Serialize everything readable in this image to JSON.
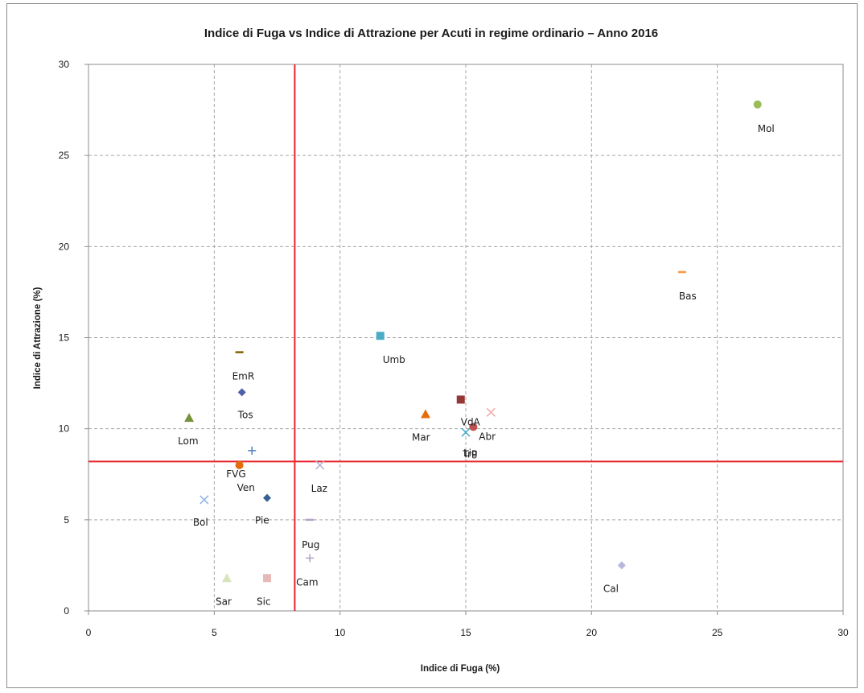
{
  "chart_data": {
    "type": "scatter",
    "title": "Indice di Fuga vs Indice di Attrazione per Acuti in regime ordinario – Anno 2016",
    "xlabel": "Indice di Fuga (%)",
    "ylabel": "Indice di Attrazione (%)",
    "xlim": [
      0,
      30
    ],
    "ylim": [
      0,
      30
    ],
    "xticks": [
      "0",
      "5",
      "10",
      "15",
      "20",
      "25",
      "30"
    ],
    "yticks": [
      "0",
      "5",
      "10",
      "15",
      "20",
      "25",
      "30"
    ],
    "grid": "dashed",
    "legend": "none",
    "reference_lines": {
      "x": 8.2,
      "y": 8.2,
      "color": "#e8242b"
    },
    "points": [
      {
        "label": "Mol",
        "x": 26.6,
        "y": 27.8,
        "marker": "circle",
        "color": "#9bbb59"
      },
      {
        "label": "Bas",
        "x": 23.6,
        "y": 18.6,
        "marker": "dash",
        "color": "#f79646"
      },
      {
        "label": "Umb",
        "x": 11.6,
        "y": 15.1,
        "marker": "square",
        "color": "#4bacc6"
      },
      {
        "label": "EmR",
        "x": 6.0,
        "y": 14.2,
        "marker": "dash",
        "color": "#7f6000"
      },
      {
        "label": "Tos",
        "x": 6.1,
        "y": 12.0,
        "marker": "diamond",
        "color": "#4f5fa8"
      },
      {
        "label": "Lom",
        "x": 4.0,
        "y": 10.6,
        "marker": "triangle",
        "color": "#76923c"
      },
      {
        "label": "VdA",
        "x": 14.8,
        "y": 11.6,
        "marker": "square",
        "color": "#953735"
      },
      {
        "label": "Mar",
        "x": 13.4,
        "y": 10.8,
        "marker": "triangle",
        "color": "#e46c0a"
      },
      {
        "label": "Abr",
        "x": 16.0,
        "y": 10.9,
        "marker": "x",
        "color": "#f2a7a7"
      },
      {
        "label": "Lig",
        "x": 15.0,
        "y": 9.8,
        "marker": "x",
        "color": "#4bacc6"
      },
      {
        "label": "TrP",
        "x": 15.3,
        "y": 10.1,
        "marker": "circle",
        "color": "#c0504d"
      },
      {
        "label": "FVG",
        "x": 6.5,
        "y": 8.8,
        "marker": "plus",
        "color": "#4f81bd"
      },
      {
        "label": "Ven",
        "x": 6.0,
        "y": 8.0,
        "marker": "circle",
        "color": "#e46c0a"
      },
      {
        "label": "Laz",
        "x": 9.2,
        "y": 8.0,
        "marker": "x",
        "color": "#b3b3d6"
      },
      {
        "label": "Bol",
        "x": 4.6,
        "y": 6.1,
        "marker": "x",
        "color": "#8db3e2"
      },
      {
        "label": "Pie",
        "x": 7.1,
        "y": 6.2,
        "marker": "diamond",
        "color": "#376092"
      },
      {
        "label": "Pug",
        "x": 8.8,
        "y": 5.0,
        "marker": "dash",
        "color": "#b3a2c7"
      },
      {
        "label": "Cam",
        "x": 8.8,
        "y": 2.9,
        "marker": "plus",
        "color": "#b3a2c7"
      },
      {
        "label": "Sar",
        "x": 5.5,
        "y": 1.8,
        "marker": "triangle",
        "color": "#d7e4bd"
      },
      {
        "label": "Sic",
        "x": 7.1,
        "y": 1.8,
        "marker": "square",
        "color": "#e6b9b8"
      },
      {
        "label": "Cal",
        "x": 21.2,
        "y": 2.5,
        "marker": "diamond",
        "color": "#b7b7dd"
      }
    ]
  }
}
